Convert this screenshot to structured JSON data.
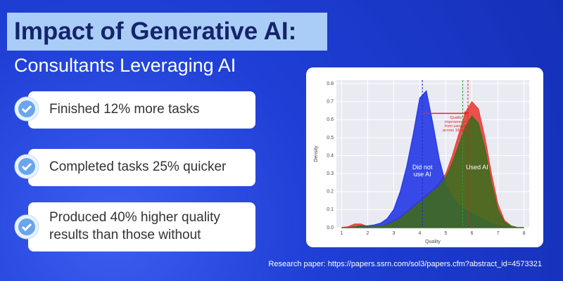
{
  "header": {
    "title": "Impact of Generative AI:",
    "subtitle": "Consultants Leveraging AI"
  },
  "bullets": [
    "Finished 12% more tasks",
    "Completed tasks 25% quicker",
    "Produced 40% higher quality results than those without"
  ],
  "footer": "Research paper: https://papers.ssrn.com/sol3/papers.cfm?abstract_id=4573321",
  "chart_data": {
    "type": "area",
    "x_label": "Quality",
    "y_label": "Density",
    "x": [
      1,
      1.25,
      1.5,
      1.75,
      2,
      2.25,
      2.5,
      2.75,
      3,
      3.25,
      3.5,
      3.75,
      4,
      4.25,
      4.5,
      4.75,
      5,
      5.25,
      5.5,
      5.75,
      6,
      6.25,
      6.5,
      6.75,
      7,
      7.25,
      7.5,
      7.75,
      8
    ],
    "series": [
      {
        "color": "#e8403a",
        "values": [
          0,
          0.005,
          0.02,
          0.02,
          0.005,
          0.005,
          0.01,
          0.02,
          0.04,
          0.06,
          0.09,
          0.12,
          0.15,
          0.18,
          0.21,
          0.25,
          0.3,
          0.4,
          0.52,
          0.64,
          0.7,
          0.66,
          0.5,
          0.3,
          0.13,
          0.04,
          0.01,
          0,
          0
        ]
      },
      {
        "name": "Did not use AI",
        "color": "#2438e6",
        "values": [
          0,
          0,
          0.005,
          0.01,
          0.01,
          0.015,
          0.025,
          0.05,
          0.1,
          0.2,
          0.34,
          0.52,
          0.72,
          0.76,
          0.58,
          0.38,
          0.24,
          0.17,
          0.13,
          0.1,
          0.08,
          0.06,
          0.04,
          0.02,
          0.01,
          0.005,
          0,
          0,
          0
        ]
      },
      {
        "name": "Used AI",
        "color": "#3f6b1f",
        "values": [
          0,
          0,
          0.005,
          0.005,
          0.005,
          0.005,
          0.01,
          0.015,
          0.03,
          0.05,
          0.08,
          0.11,
          0.14,
          0.17,
          0.2,
          0.23,
          0.28,
          0.36,
          0.46,
          0.56,
          0.62,
          0.58,
          0.44,
          0.25,
          0.1,
          0.03,
          0.01,
          0,
          0
        ]
      }
    ],
    "vlines": [
      {
        "value": 4.1,
        "color": "#1a2fc8"
      },
      {
        "value": 5.65,
        "color": "#2e9a2e"
      },
      {
        "value": 5.85,
        "color": "#d62020"
      }
    ],
    "annotation": "Quality improvement from using AI across 18 tasks",
    "xlim": [
      0.8,
      8.2
    ],
    "ylim": [
      0,
      0.82
    ],
    "xticks": [
      1,
      2,
      3,
      4,
      5,
      6,
      7,
      8
    ],
    "yticks": [
      {
        "value": 0,
        "label": "0.0"
      },
      0.1,
      0.2,
      0.3,
      0.4,
      0.5,
      0.6,
      0.7,
      0.8
    ],
    "grid": true
  }
}
